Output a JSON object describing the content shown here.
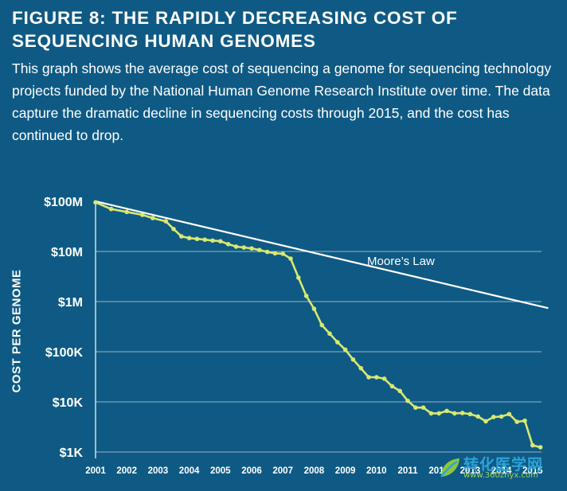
{
  "figure": {
    "title": "FIGURE 8: THE RAPIDLY DECREASING COST OF SEQUENCING HUMAN GENOMES",
    "description": "This graph shows the average cost of sequencing a genome for sequencing technology projects funded by the National Human Genome Research Institute over time. The data capture the dramatic decline in sequencing costs through 2015, and the cost has continued to drop."
  },
  "watermark": {
    "text": "转化医学网",
    "url": "www.360zhyx.com",
    "logo_icon": "leaf-logo-icon"
  },
  "chart_data": {
    "type": "line",
    "ylabel": "COST PER GENOME",
    "xlabel": "",
    "y_scale": "log",
    "ylim": [
      1000,
      100000000
    ],
    "xlim": [
      2001,
      2015.5
    ],
    "y_ticks": [
      {
        "value": 100000000,
        "label": "$100M"
      },
      {
        "value": 10000000,
        "label": "$10M"
      },
      {
        "value": 1000000,
        "label": "$1M"
      },
      {
        "value": 100000,
        "label": "$100K"
      },
      {
        "value": 10000,
        "label": "$10K"
      },
      {
        "value": 1000,
        "label": "$1K"
      }
    ],
    "x_ticks": [
      {
        "value": 2001,
        "label": "2001"
      },
      {
        "value": 2002,
        "label": "2002"
      },
      {
        "value": 2003,
        "label": "2003"
      },
      {
        "value": 2004,
        "label": "2004"
      },
      {
        "value": 2005,
        "label": "2005"
      },
      {
        "value": 2006,
        "label": "2006"
      },
      {
        "value": 2007,
        "label": "2007"
      },
      {
        "value": 2008,
        "label": "2008"
      },
      {
        "value": 2009,
        "label": "2009"
      },
      {
        "value": 2010,
        "label": "2010"
      },
      {
        "value": 2011,
        "label": "2011"
      },
      {
        "value": 2012,
        "label": "2012"
      },
      {
        "value": 2013,
        "label": "2013"
      },
      {
        "value": 2014,
        "label": "2014"
      },
      {
        "value": 2015,
        "label": "2015"
      }
    ],
    "grid": true,
    "colors": {
      "background": "#0f5a84",
      "cost_series": "#d9e86f",
      "moores_law": "#ffffff",
      "grid": "#ffffff"
    },
    "series": [
      {
        "name": "",
        "values": [
          {
            "x": 2001.0,
            "y": 95263072
          },
          {
            "x": 2001.5,
            "y": 70175437
          },
          {
            "x": 2002.0,
            "y": 61448422
          },
          {
            "x": 2002.5,
            "y": 53751684
          },
          {
            "x": 2002.83,
            "y": 46400000
          },
          {
            "x": 2003.25,
            "y": 40000000
          },
          {
            "x": 2003.5,
            "y": 28000000
          },
          {
            "x": 2003.75,
            "y": 20000000
          },
          {
            "x": 2004.0,
            "y": 18500000
          },
          {
            "x": 2004.25,
            "y": 17800000
          },
          {
            "x": 2004.5,
            "y": 17200000
          },
          {
            "x": 2004.75,
            "y": 16500000
          },
          {
            "x": 2005.0,
            "y": 16000000
          },
          {
            "x": 2005.25,
            "y": 14000000
          },
          {
            "x": 2005.5,
            "y": 12500000
          },
          {
            "x": 2005.75,
            "y": 12000000
          },
          {
            "x": 2006.0,
            "y": 11500000
          },
          {
            "x": 2006.25,
            "y": 10700000
          },
          {
            "x": 2006.5,
            "y": 9800000
          },
          {
            "x": 2006.75,
            "y": 9200000
          },
          {
            "x": 2007.0,
            "y": 9000000
          },
          {
            "x": 2007.25,
            "y": 7200000
          },
          {
            "x": 2007.5,
            "y": 3000000
          },
          {
            "x": 2007.75,
            "y": 1300000
          },
          {
            "x": 2008.0,
            "y": 720000
          },
          {
            "x": 2008.25,
            "y": 340000
          },
          {
            "x": 2008.5,
            "y": 230000
          },
          {
            "x": 2008.75,
            "y": 155000
          },
          {
            "x": 2009.0,
            "y": 110000
          },
          {
            "x": 2009.25,
            "y": 70000
          },
          {
            "x": 2009.5,
            "y": 47000
          },
          {
            "x": 2009.75,
            "y": 31000
          },
          {
            "x": 2010.0,
            "y": 31000
          },
          {
            "x": 2010.25,
            "y": 29000
          },
          {
            "x": 2010.5,
            "y": 20500
          },
          {
            "x": 2010.75,
            "y": 16500
          },
          {
            "x": 2011.0,
            "y": 10500
          },
          {
            "x": 2011.25,
            "y": 7700
          },
          {
            "x": 2011.5,
            "y": 7700
          },
          {
            "x": 2011.75,
            "y": 5900
          },
          {
            "x": 2012.0,
            "y": 5900
          },
          {
            "x": 2012.25,
            "y": 6600
          },
          {
            "x": 2012.5,
            "y": 5900
          },
          {
            "x": 2012.75,
            "y": 6000
          },
          {
            "x": 2013.0,
            "y": 5700
          },
          {
            "x": 2013.25,
            "y": 5100
          },
          {
            "x": 2013.5,
            "y": 4100
          },
          {
            "x": 2013.75,
            "y": 5000
          },
          {
            "x": 2014.0,
            "y": 5100
          },
          {
            "x": 2014.25,
            "y": 5700
          },
          {
            "x": 2014.5,
            "y": 4000
          },
          {
            "x": 2014.75,
            "y": 4200
          },
          {
            "x": 2015.0,
            "y": 1360
          },
          {
            "x": 2015.25,
            "y": 1245
          }
        ]
      },
      {
        "name": "Moore’s Law",
        "label_at": {
          "x": 2009.7,
          "y": 6500000
        },
        "values": [
          {
            "x": 2001.0,
            "y": 100000000
          },
          {
            "x": 2015.5,
            "y": 740000
          }
        ]
      }
    ]
  }
}
